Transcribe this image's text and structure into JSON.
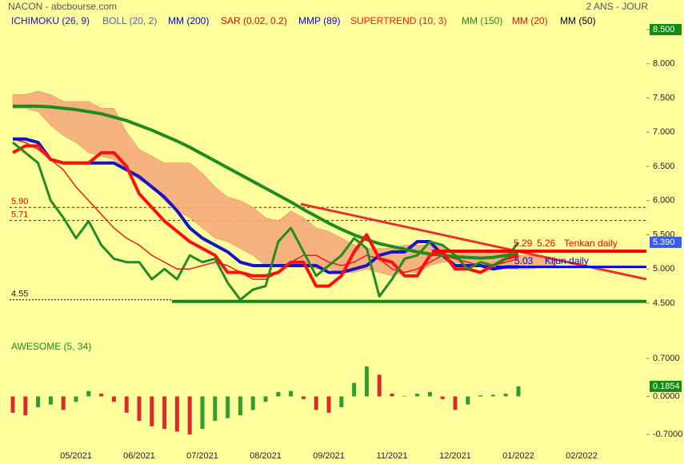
{
  "chart_data": [
    {
      "type": "line",
      "title": "NACON - abcbourse.com",
      "period": "2 ANS - JOUR",
      "categories": [
        null,
        null,
        null,
        null,
        null,
        "05/2021",
        null,
        null,
        null,
        null,
        "06/2021",
        null,
        null,
        null,
        null,
        "07/2021",
        null,
        null,
        null,
        null,
        "08/2021",
        null,
        null,
        null,
        null,
        "09/2021",
        null,
        null,
        null,
        null,
        "11/2021",
        null,
        null,
        null,
        null,
        "12/2021",
        null,
        null,
        null,
        null,
        "01/2022",
        null,
        null,
        null,
        null,
        "02/2022",
        null,
        null,
        null,
        null,
        null
      ],
      "ylim": [
        4.5,
        8.5
      ],
      "yticks": [
        {
          "value": 8.5,
          "label": "8.500"
        },
        {
          "value": 8,
          "label": "8.000"
        },
        {
          "value": 7.5,
          "label": "7.500"
        },
        {
          "value": 7,
          "label": "7.000"
        },
        {
          "value": 6.5,
          "label": "6.500"
        },
        {
          "value": 6,
          "label": "6.000"
        },
        {
          "value": 5.5,
          "label": "5.500"
        },
        {
          "value": 5,
          "label": "5.000"
        },
        {
          "value": 4.5,
          "label": "4.500"
        }
      ],
      "series": [
        {
          "color": "#228b22",
          "values": [
            6.85,
            6.7,
            6.55,
            6.0,
            5.75,
            5.45,
            5.7,
            5.35,
            5.15,
            5.1,
            5.1,
            4.85,
            5.0,
            4.85,
            5.2,
            5.1,
            5.15,
            4.8,
            4.55,
            4.7,
            4.75,
            5.4,
            5.6,
            5.25,
            4.9,
            5.05,
            5.2,
            5.45,
            5.3,
            4.6,
            4.85,
            5.15,
            5.2,
            5.4,
            5.35,
            5.2,
            5.0,
            5.1,
            5.05,
            5.15,
            5.39,
            null,
            null,
            null,
            null,
            null,
            null,
            null,
            null,
            null,
            null
          ]
        },
        {
          "name": "ICHIMOKU (26, 9)",
          "color": "#1414c8",
          "values": [
            6.9,
            6.9,
            6.85,
            6.6,
            6.55,
            6.55,
            6.55,
            6.55,
            6.55,
            6.45,
            6.35,
            6.2,
            6.05,
            5.85,
            5.6,
            5.45,
            5.35,
            5.25,
            5.1,
            5.05,
            5.05,
            5.05,
            5.05,
            5.05,
            5.05,
            4.95,
            4.95,
            5.0,
            5.05,
            5.2,
            5.25,
            5.25,
            5.4,
            5.4,
            5.2,
            5.05,
            5.05,
            5.05,
            5.0,
            5.03,
            5.03,
            null,
            null,
            null,
            null,
            null,
            null,
            null,
            null,
            null,
            null
          ],
          "cloud_color": "#f6a678",
          "cloud_top": [
            7.55,
            7.55,
            7.6,
            7.55,
            7.45,
            7.45,
            7.45,
            7.35,
            7.35,
            7.0,
            6.75,
            6.65,
            6.55,
            6.55,
            6.55,
            6.4,
            6.2,
            6.05,
            6.0,
            5.9,
            5.75,
            5.7,
            5.85,
            5.75,
            5.6,
            5.55,
            5.45,
            5.35,
            5.3,
            5.3,
            5.3,
            5.35,
            5.35,
            5.35,
            5.35,
            5.25,
            5.25,
            5.25,
            5.25,
            5.25,
            5.2,
            5.2,
            5.15,
            5.15,
            null,
            null,
            null,
            null,
            null,
            null,
            null
          ],
          "cloud_bottom": [
            7.35,
            7.35,
            7.3,
            7.1,
            6.95,
            6.85,
            6.7,
            6.65,
            6.6,
            6.45,
            6.3,
            6.2,
            6.0,
            5.85,
            5.75,
            5.6,
            5.45,
            5.4,
            5.3,
            5.2,
            5.05,
            5.05,
            5.05,
            5.05,
            5.0,
            5.0,
            4.95,
            4.95,
            5.0,
            4.95,
            4.9,
            4.95,
            4.95,
            5.05,
            5.1,
            5.1,
            5.05,
            5.05,
            5.0,
            5.0,
            5.0,
            5.0,
            5.03,
            5.03,
            null,
            null,
            null,
            null,
            null,
            null,
            null
          ]
        },
        {
          "name": "BOLL (20, 2)",
          "color": "#4a62c8"
        },
        {
          "name": "MM (200)",
          "color": "#0000dd"
        },
        {
          "name": "SAR (0.02, 0.2)",
          "color": "#e00000"
        },
        {
          "name": "MMP (89)",
          "color": "#0000ee"
        },
        {
          "name": "SUPERTREND (10, 3)",
          "color": "#ff1010",
          "values": [
            6.7,
            6.8,
            6.8,
            6.6,
            6.55,
            6.55,
            6.55,
            6.7,
            6.7,
            6.5,
            6.1,
            5.9,
            5.7,
            5.55,
            5.4,
            5.3,
            5.2,
            4.95,
            4.95,
            4.9,
            4.9,
            4.95,
            5.1,
            5.1,
            4.75,
            4.75,
            4.9,
            5.25,
            5.5,
            5.15,
            5.1,
            4.9,
            4.9,
            5.2,
            5.25,
            5.0,
            5.0,
            4.95,
            5.05,
            5.15,
            5.2,
            null,
            null,
            null,
            null,
            null,
            null,
            null,
            null,
            null,
            null
          ]
        },
        {
          "name": "MM (150)",
          "color": "#1f8a1f",
          "values": [
            7.38,
            7.38,
            7.38,
            7.37,
            7.35,
            7.33,
            7.3,
            7.27,
            7.22,
            7.17,
            7.1,
            7.03,
            6.95,
            6.87,
            6.78,
            6.68,
            6.58,
            6.48,
            6.38,
            6.28,
            6.18,
            6.08,
            5.98,
            5.87,
            5.77,
            5.67,
            5.58,
            5.5,
            5.43,
            5.37,
            5.33,
            5.29,
            5.25,
            5.22,
            5.2,
            5.18,
            5.17,
            5.16,
            5.17,
            5.2,
            5.22,
            null,
            null,
            null,
            null,
            null,
            null,
            null,
            null,
            null,
            null
          ]
        },
        {
          "name": "MM (20)",
          "color": "#ee1010",
          "values": [
            6.9,
            6.85,
            6.75,
            6.6,
            6.45,
            6.2,
            6.0,
            5.8,
            5.6,
            5.45,
            5.35,
            5.2,
            5.1,
            5.0,
            5.0,
            5.05,
            5.1,
            5.05,
            4.95,
            4.85,
            4.85,
            4.95,
            5.1,
            5.2,
            5.2,
            5.1,
            5.05,
            5.1,
            5.2,
            5.15,
            5.0,
            4.95,
            5.0,
            5.1,
            5.2,
            5.15,
            5.1,
            5.05,
            5.05,
            5.1,
            5.15,
            null,
            null,
            null,
            null,
            null,
            null,
            null,
            null,
            null,
            null
          ]
        },
        {
          "name": "MM (50)",
          "color": "#000000"
        }
      ],
      "levels": [
        {
          "value": 5.9,
          "label": "5.90",
          "color": "#e00000"
        },
        {
          "value": 5.71,
          "color": "#e00000"
        },
        {
          "value": 4.55,
          "color": "#000000",
          "support_color": "#138a13"
        }
      ],
      "trendline": {
        "start": 5.95,
        "end": 4.85,
        "color": "#e83030"
      },
      "tenkan": {
        "values": [
          5.29,
          5.26
        ],
        "label": "Tenkan daily",
        "color": "#ff0000"
      },
      "kijun": {
        "value": 5.03,
        "label": "Kijun daily",
        "color": "#0000ee"
      },
      "last_price": {
        "value": 5.39,
        "label": "5.390",
        "color": "#3a5cf0"
      },
      "top_box_color": "#148c14"
    },
    {
      "type": "bar",
      "title": "AWESOME (5, 34)",
      "ylim": [
        -0.7,
        0.7
      ],
      "yticks": [
        {
          "value": 0.7,
          "label": "0.7000"
        },
        {
          "value": 0,
          "label": "0.0000"
        },
        {
          "value": -0.7,
          "label": "-0.7000"
        }
      ],
      "up_color": "#2e9e2e",
      "down_color": "#e02828",
      "box_color": "#148c14",
      "values": [
        -0.3,
        -0.35,
        -0.2,
        -0.15,
        -0.25,
        -0.1,
        0.1,
        0.05,
        -0.1,
        -0.3,
        -0.45,
        -0.55,
        -0.6,
        -0.65,
        -0.7,
        -0.6,
        -0.45,
        -0.4,
        -0.35,
        -0.25,
        -0.1,
        0.08,
        0.1,
        -0.05,
        -0.25,
        -0.3,
        -0.2,
        0.25,
        0.55,
        0.4,
        0.05,
        0.0,
        0.05,
        0.08,
        -0.05,
        -0.25,
        -0.15,
        0.02,
        0.03,
        0.05,
        0.1854
      ]
    }
  ]
}
